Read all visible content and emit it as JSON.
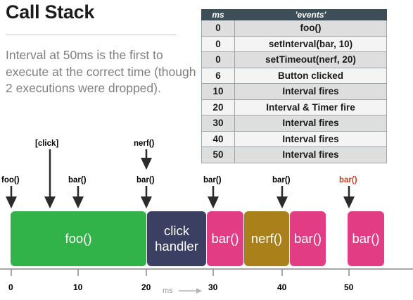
{
  "title": "Call Stack",
  "description": "Interval at 50ms is the first to execute at the correct time (though 2 executions were dropped).",
  "table": {
    "headers": [
      "ms",
      "'events'"
    ],
    "rows": [
      [
        "0",
        "foo()"
      ],
      [
        "0",
        "setInterval(bar, 10)"
      ],
      [
        "0",
        "setTimeout(nerf, 20)"
      ],
      [
        "6",
        "Button clicked"
      ],
      [
        "10",
        "Interval fires"
      ],
      [
        "20",
        "Interval & Timer fire"
      ],
      [
        "30",
        "Interval fires"
      ],
      [
        "40",
        "Interval fires"
      ],
      [
        "50",
        "Interval fires"
      ]
    ]
  },
  "upper_labels": {
    "click": "[click]",
    "nerf": "nerf()"
  },
  "lower_labels": {
    "foo": "foo()",
    "bar10": "bar()",
    "bar20": "bar()",
    "bar30": "bar()",
    "bar40": "bar()",
    "bar50": "bar()"
  },
  "highlight_color": "#d93a1e",
  "blocks": {
    "foo": {
      "label": "foo()",
      "color": "#32b34a"
    },
    "click": {
      "line1": "click",
      "line2": "handler",
      "color": "#3b3f62"
    },
    "bar1": {
      "label": "bar()",
      "color": "#e23c85"
    },
    "nerf": {
      "label": "nerf()",
      "color": "#a9801a"
    },
    "bar2": {
      "label": "bar()",
      "color": "#e23c85"
    },
    "bar3": {
      "label": "bar()",
      "color": "#e23c85"
    }
  },
  "axis": {
    "ticks": [
      "0",
      "10",
      "20",
      "30",
      "40",
      "50"
    ],
    "unit": "ms"
  }
}
